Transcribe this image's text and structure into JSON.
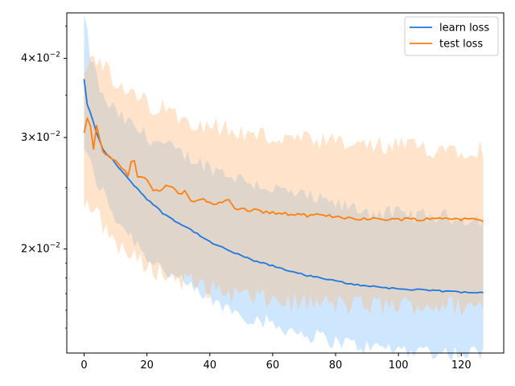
{
  "chart_data": {
    "type": "line",
    "title": "",
    "xlabel": "",
    "ylabel": "",
    "yscale": "log",
    "xlim": [
      -5.5,
      133.5
    ],
    "ylim": [
      0.0137,
      0.0472
    ],
    "x_ticks": [
      {
        "value": 0,
        "label": "0"
      },
      {
        "value": 20,
        "label": "20"
      },
      {
        "value": 40,
        "label": "40"
      },
      {
        "value": 60,
        "label": "60"
      },
      {
        "value": 80,
        "label": "80"
      },
      {
        "value": 100,
        "label": "100"
      },
      {
        "value": 120,
        "label": "120"
      }
    ],
    "y_ticks": [
      {
        "value": 0.02,
        "mantissa": "2",
        "base": "10",
        "exp": "−2"
      },
      {
        "value": 0.03,
        "mantissa": "3",
        "base": "10",
        "exp": "−2"
      },
      {
        "value": 0.04,
        "mantissa": "4",
        "base": "10",
        "exp": "−2"
      }
    ],
    "legend_position": "top-right",
    "grid": false,
    "n_points": 128,
    "series": [
      {
        "name": "learn loss",
        "color": "#1f77e0",
        "band_color": "#7fbfff",
        "mean_anchors": [
          [
            0,
            0.0371
          ],
          [
            1,
            0.0338
          ],
          [
            2,
            0.0328
          ],
          [
            4,
            0.0305
          ],
          [
            6,
            0.0287
          ],
          [
            10,
            0.0273
          ],
          [
            14,
            0.0258
          ],
          [
            20,
            0.024
          ],
          [
            25,
            0.0228
          ],
          [
            30,
            0.022
          ],
          [
            35,
            0.0213
          ],
          [
            40,
            0.0205
          ],
          [
            45,
            0.02
          ],
          [
            50,
            0.0195
          ],
          [
            55,
            0.0191
          ],
          [
            60,
            0.0188
          ],
          [
            65,
            0.0185
          ],
          [
            70,
            0.0182
          ],
          [
            75,
            0.018
          ],
          [
            80,
            0.0178
          ],
          [
            85,
            0.0176
          ],
          [
            90,
            0.0175
          ],
          [
            95,
            0.0174
          ],
          [
            100,
            0.0173
          ],
          [
            110,
            0.0172
          ],
          [
            120,
            0.0171
          ],
          [
            127,
            0.0171
          ]
        ],
        "upper_anchors": [
          [
            0,
            0.0465
          ],
          [
            2,
            0.0402
          ],
          [
            6,
            0.0345
          ],
          [
            12,
            0.0322
          ],
          [
            20,
            0.0301
          ],
          [
            30,
            0.0284
          ],
          [
            40,
            0.027
          ],
          [
            50,
            0.0258
          ],
          [
            60,
            0.0249
          ],
          [
            70,
            0.0242
          ],
          [
            80,
            0.0235
          ],
          [
            90,
            0.023
          ],
          [
            100,
            0.0227
          ],
          [
            110,
            0.0225
          ],
          [
            120,
            0.0224
          ],
          [
            127,
            0.0223
          ]
        ],
        "lower_anchors": [
          [
            0,
            0.029
          ],
          [
            3,
            0.0262
          ],
          [
            10,
            0.0224
          ],
          [
            20,
            0.0195
          ],
          [
            30,
            0.0178
          ],
          [
            40,
            0.0166
          ],
          [
            50,
            0.0158
          ],
          [
            60,
            0.0152
          ],
          [
            70,
            0.0147
          ],
          [
            80,
            0.0143
          ],
          [
            90,
            0.014
          ],
          [
            100,
            0.0139
          ],
          [
            110,
            0.0138
          ],
          [
            120,
            0.0137
          ],
          [
            127,
            0.0137
          ]
        ]
      },
      {
        "name": "test loss",
        "color": "#ff7f0e",
        "band_color": "#ffb877",
        "mean_anchors": [
          [
            0,
            0.0305
          ],
          [
            1,
            0.0322
          ],
          [
            2,
            0.0315
          ],
          [
            3,
            0.0288
          ],
          [
            4,
            0.0315
          ],
          [
            6,
            0.0284
          ],
          [
            8,
            0.0281
          ],
          [
            10,
            0.0276
          ],
          [
            12,
            0.0268
          ],
          [
            14,
            0.0262
          ],
          [
            15,
            0.0275
          ],
          [
            16,
            0.0276
          ],
          [
            17,
            0.026
          ],
          [
            20,
            0.0257
          ],
          [
            22,
            0.0248
          ],
          [
            24,
            0.0246
          ],
          [
            26,
            0.0253
          ],
          [
            28,
            0.025
          ],
          [
            30,
            0.0244
          ],
          [
            32,
            0.0246
          ],
          [
            34,
            0.0238
          ],
          [
            38,
            0.024
          ],
          [
            42,
            0.0235
          ],
          [
            46,
            0.0239
          ],
          [
            48,
            0.0232
          ],
          [
            50,
            0.0231
          ],
          [
            55,
            0.023
          ],
          [
            60,
            0.0228
          ],
          [
            65,
            0.0227
          ],
          [
            70,
            0.0226
          ],
          [
            75,
            0.0226
          ],
          [
            80,
            0.0225
          ],
          [
            85,
            0.0224
          ],
          [
            90,
            0.0223
          ],
          [
            95,
            0.0223
          ],
          [
            100,
            0.0223
          ],
          [
            105,
            0.0223
          ],
          [
            110,
            0.0223
          ],
          [
            115,
            0.0224
          ],
          [
            120,
            0.0223
          ],
          [
            127,
            0.0222
          ]
        ],
        "upper_anchors": [
          [
            0,
            0.0375
          ],
          [
            2,
            0.041
          ],
          [
            5,
            0.04
          ],
          [
            10,
            0.036
          ],
          [
            20,
            0.034
          ],
          [
            30,
            0.0325
          ],
          [
            40,
            0.0315
          ],
          [
            50,
            0.0305
          ],
          [
            60,
            0.03
          ],
          [
            70,
            0.0296
          ],
          [
            80,
            0.0293
          ],
          [
            90,
            0.0291
          ],
          [
            100,
            0.029
          ],
          [
            110,
            0.0289
          ],
          [
            120,
            0.0289
          ],
          [
            127,
            0.0289
          ]
        ],
        "lower_anchors": [
          [
            0,
            0.0236
          ],
          [
            3,
            0.023
          ],
          [
            8,
            0.0211
          ],
          [
            15,
            0.0194
          ],
          [
            25,
            0.0183
          ],
          [
            35,
            0.0176
          ],
          [
            45,
            0.0171
          ],
          [
            55,
            0.0167
          ],
          [
            65,
            0.0165
          ],
          [
            75,
            0.0164
          ],
          [
            85,
            0.0163
          ],
          [
            95,
            0.0163
          ],
          [
            105,
            0.0163
          ],
          [
            115,
            0.0163
          ],
          [
            127,
            0.0162
          ]
        ]
      }
    ]
  }
}
